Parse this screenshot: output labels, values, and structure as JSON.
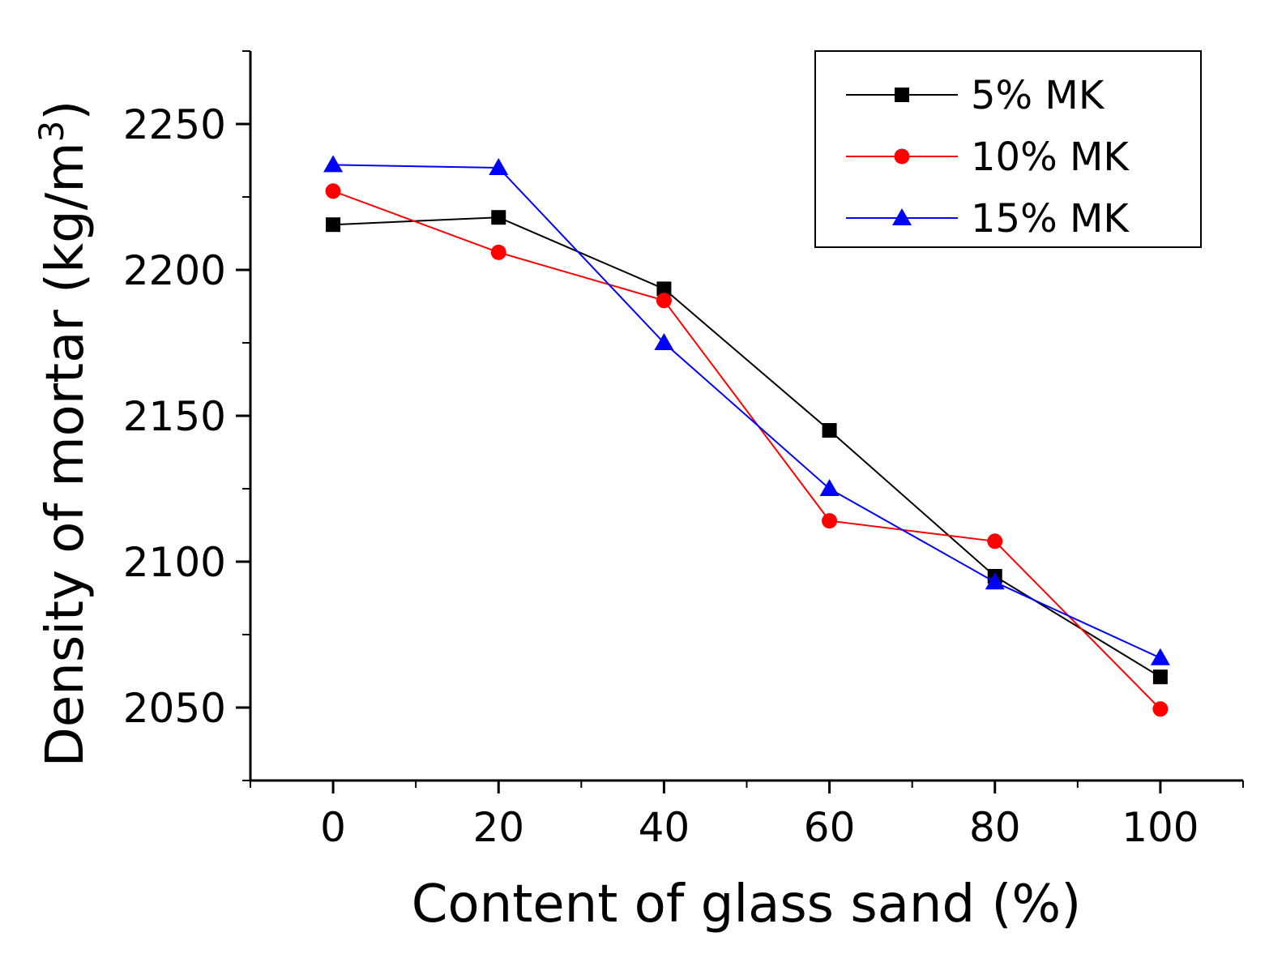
{
  "chart_data": {
    "type": "line",
    "title": "",
    "xlabel": "Content of glass sand (%)",
    "ylabel_main": "Density of mortar (kg/m",
    "ylabel_sup": "3",
    "ylabel_close": ")",
    "x": [
      0,
      20,
      40,
      60,
      80,
      100
    ],
    "xlim": [
      -10,
      110
    ],
    "ylim": [
      2025,
      2275
    ],
    "xticks": [
      0,
      20,
      40,
      60,
      80,
      100
    ],
    "xtick_labels": [
      "0",
      "20",
      "40",
      "60",
      "80",
      "100"
    ],
    "yticks": [
      2050,
      2100,
      2150,
      2200,
      2250
    ],
    "ytick_labels": [
      "2050",
      "2100",
      "2150",
      "2200",
      "2250"
    ],
    "grid": false,
    "legend_position": "top-right",
    "series": [
      {
        "name": "5% MK",
        "color": "#000000",
        "marker": "square",
        "values": [
          2215.5,
          2218,
          2193.5,
          2145,
          2095,
          2060.5
        ]
      },
      {
        "name": "10% MK",
        "color": "#ff0000",
        "marker": "circle",
        "values": [
          2227,
          2206,
          2189.5,
          2114,
          2107,
          2049.5
        ]
      },
      {
        "name": "15% MK",
        "color": "#0000ff",
        "marker": "triangle",
        "values": [
          2236,
          2235,
          2175,
          2125,
          2093,
          2067
        ]
      }
    ]
  }
}
